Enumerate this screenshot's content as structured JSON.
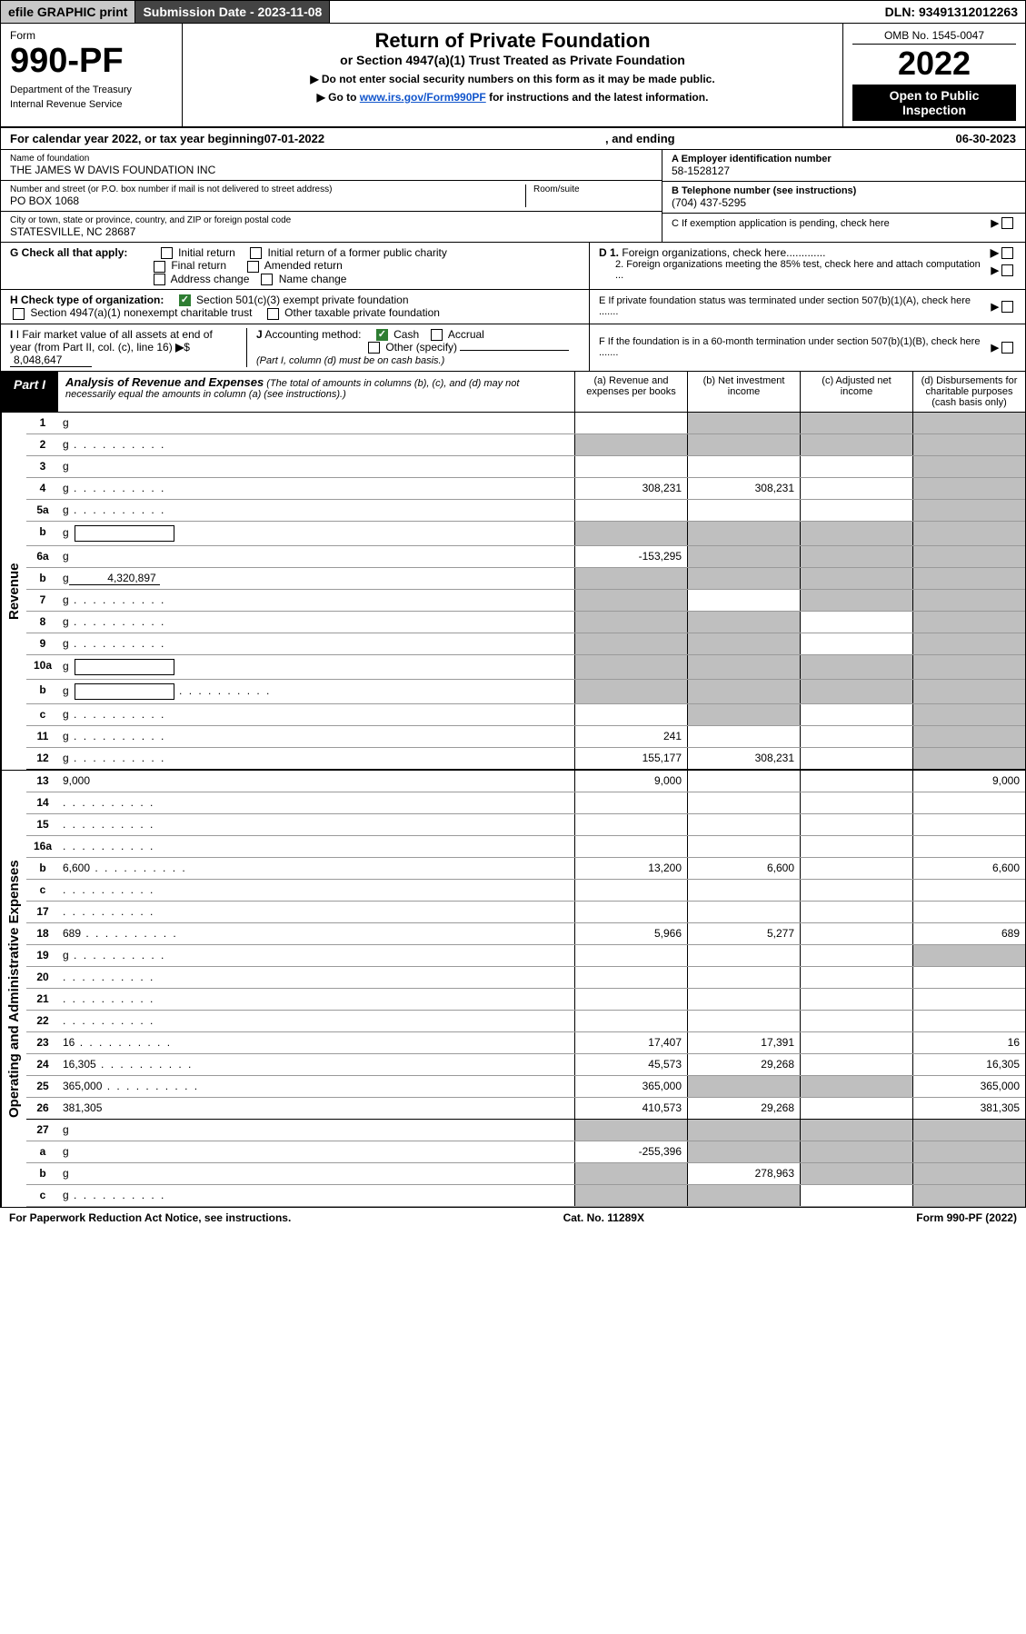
{
  "topbar": {
    "efile": "efile GRAPHIC print",
    "subdate_label": "Submission Date - 2023-11-08",
    "dln": "DLN: 93491312012263"
  },
  "header": {
    "form_label": "Form",
    "form_number": "990-PF",
    "dept1": "Department of the Treasury",
    "dept2": "Internal Revenue Service",
    "title": "Return of Private Foundation",
    "subtitle": "or Section 4947(a)(1) Trust Treated as Private Foundation",
    "note1": "▶ Do not enter social security numbers on this form as it may be made public.",
    "note2_pre": "▶ Go to ",
    "note2_link": "www.irs.gov/Form990PF",
    "note2_post": " for instructions and the latest information.",
    "omb": "OMB No. 1545-0047",
    "year": "2022",
    "openpub": "Open to Public Inspection"
  },
  "calendaryear": {
    "prefix": "For calendar year 2022, or tax year beginning ",
    "begin": "07-01-2022",
    "mid": " , and ending ",
    "end": "06-30-2023"
  },
  "id": {
    "name_cap": "Name of foundation",
    "name": "THE JAMES W DAVIS FOUNDATION INC",
    "addr_cap": "Number and street (or P.O. box number if mail is not delivered to street address)",
    "addr": "PO BOX 1068",
    "room_cap": "Room/suite",
    "city_cap": "City or town, state or province, country, and ZIP or foreign postal code",
    "city": "STATESVILLE, NC  28687",
    "a_cap": "A Employer identification number",
    "a_val": "58-1528127",
    "b_cap": "B Telephone number (see instructions)",
    "b_val": "(704) 437-5295",
    "c_text": "C  If exemption application is pending, check here",
    "d1": "D 1. Foreign organizations, check here.............",
    "d2": "2. Foreign organizations meeting the 85% test, check here and attach computation ...",
    "e": "E  If private foundation status was terminated under section 507(b)(1)(A), check here .......",
    "f": "F  If the foundation is in a 60-month termination under section 507(b)(1)(B), check here .......",
    "g_label": "G Check all that apply:",
    "g_opts": [
      "Initial return",
      "Initial return of a former public charity",
      "Final return",
      "Amended return",
      "Address change",
      "Name change"
    ],
    "h_label": "H Check type of organization:",
    "h_opt1": "Section 501(c)(3) exempt private foundation",
    "h_opt2": "Section 4947(a)(1) nonexempt charitable trust",
    "h_opt3": "Other taxable private foundation",
    "i_label": "I Fair market value of all assets at end of year (from Part II, col. (c), line 16)",
    "i_val": "8,048,647",
    "j_label": "J Accounting method:",
    "j_cash": "Cash",
    "j_accrual": "Accrual",
    "j_other": "Other (specify)",
    "j_note": "(Part I, column (d) must be on cash basis.)"
  },
  "part1": {
    "tag": "Part I",
    "title": "Analysis of Revenue and Expenses",
    "title_note": "(The total of amounts in columns (b), (c), and (d) may not necessarily equal the amounts in column (a) (see instructions).)",
    "col_a": "(a)  Revenue and expenses per books",
    "col_b": "(b)  Net investment income",
    "col_c": "(c)  Adjusted net income",
    "col_d": "(d)  Disbursements for charitable purposes (cash basis only)",
    "vlabel_rev": "Revenue",
    "vlabel_exp": "Operating and Administrative Expenses"
  },
  "rows": [
    {
      "n": "1",
      "d": "g",
      "a": "",
      "b": "g",
      "c": "g"
    },
    {
      "n": "2",
      "d": "g",
      "dots": true,
      "a": "g",
      "b": "g",
      "c": "g"
    },
    {
      "n": "3",
      "d": "g",
      "a": "",
      "b": "",
      "c": ""
    },
    {
      "n": "4",
      "d": "g",
      "dots": true,
      "a": "308,231",
      "b": "308,231",
      "c": ""
    },
    {
      "n": "5a",
      "d": "g",
      "dots": true,
      "a": "",
      "b": "",
      "c": ""
    },
    {
      "n": "b",
      "d": "g",
      "box": true,
      "a": "g",
      "b": "g",
      "c": "g"
    },
    {
      "n": "6a",
      "d": "g",
      "a": "-153,295",
      "b": "g",
      "c": "g"
    },
    {
      "n": "b",
      "d": "g",
      "inline": "4,320,897",
      "a": "g",
      "b": "g",
      "c": "g"
    },
    {
      "n": "7",
      "d": "g",
      "dots": true,
      "a": "g",
      "b": "",
      "c": "g"
    },
    {
      "n": "8",
      "d": "g",
      "dots": true,
      "a": "g",
      "b": "g",
      "c": ""
    },
    {
      "n": "9",
      "d": "g",
      "dots": true,
      "a": "g",
      "b": "g",
      "c": ""
    },
    {
      "n": "10a",
      "d": "g",
      "box": true,
      "a": "g",
      "b": "g",
      "c": "g"
    },
    {
      "n": "b",
      "d": "g",
      "dots": true,
      "box": true,
      "a": "g",
      "b": "g",
      "c": "g"
    },
    {
      "n": "c",
      "d": "g",
      "dots": true,
      "a": "",
      "b": "g",
      "c": ""
    },
    {
      "n": "11",
      "d": "g",
      "dots": true,
      "a": "241",
      "b": "",
      "c": ""
    },
    {
      "n": "12",
      "d": "g",
      "dots": true,
      "a": "155,177",
      "b": "308,231",
      "c": "",
      "hb": true
    }
  ],
  "exp_rows": [
    {
      "n": "13",
      "d": "9,000",
      "a": "9,000",
      "b": "",
      "c": ""
    },
    {
      "n": "14",
      "d": "",
      "dots": true,
      "a": "",
      "b": "",
      "c": ""
    },
    {
      "n": "15",
      "d": "",
      "dots": true,
      "a": "",
      "b": "",
      "c": ""
    },
    {
      "n": "16a",
      "d": "",
      "dots": true,
      "a": "",
      "b": "",
      "c": ""
    },
    {
      "n": "b",
      "d": "6,600",
      "dots": true,
      "a": "13,200",
      "b": "6,600",
      "c": ""
    },
    {
      "n": "c",
      "d": "",
      "dots": true,
      "a": "",
      "b": "",
      "c": ""
    },
    {
      "n": "17",
      "d": "",
      "dots": true,
      "a": "",
      "b": "",
      "c": ""
    },
    {
      "n": "18",
      "d": "689",
      "dots": true,
      "a": "5,966",
      "b": "5,277",
      "c": ""
    },
    {
      "n": "19",
      "d": "g",
      "dots": true,
      "a": "",
      "b": "",
      "c": ""
    },
    {
      "n": "20",
      "d": "",
      "dots": true,
      "a": "",
      "b": "",
      "c": ""
    },
    {
      "n": "21",
      "d": "",
      "dots": true,
      "a": "",
      "b": "",
      "c": ""
    },
    {
      "n": "22",
      "d": "",
      "dots": true,
      "a": "",
      "b": "",
      "c": ""
    },
    {
      "n": "23",
      "d": "16",
      "dots": true,
      "a": "17,407",
      "b": "17,391",
      "c": ""
    },
    {
      "n": "24",
      "d": "16,305",
      "dots": true,
      "a": "45,573",
      "b": "29,268",
      "c": ""
    },
    {
      "n": "25",
      "d": "365,000",
      "dots": true,
      "a": "365,000",
      "b": "g",
      "c": "g"
    },
    {
      "n": "26",
      "d": "381,305",
      "a": "410,573",
      "b": "29,268",
      "c": "",
      "hb": true
    },
    {
      "n": "27",
      "d": "g",
      "a": "g",
      "b": "g",
      "c": "g"
    },
    {
      "n": "a",
      "d": "g",
      "a": "-255,396",
      "b": "g",
      "c": "g"
    },
    {
      "n": "b",
      "d": "g",
      "a": "g",
      "b": "278,963",
      "c": "g"
    },
    {
      "n": "c",
      "d": "g",
      "dots": true,
      "a": "g",
      "b": "g",
      "c": ""
    }
  ],
  "footer": {
    "left": "For Paperwork Reduction Act Notice, see instructions.",
    "mid": "Cat. No. 11289X",
    "right": "Form 990-PF (2022)"
  }
}
